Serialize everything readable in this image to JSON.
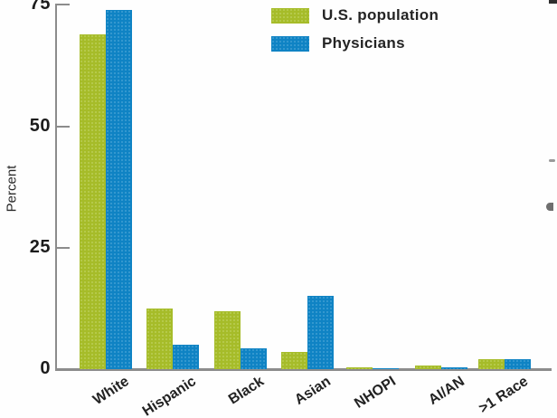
{
  "figure": {
    "y_axis_label": "Percent"
  },
  "chart_data": {
    "type": "bar",
    "title": "",
    "xlabel": "",
    "ylabel": "Percent",
    "categories": [
      "White",
      "Hispanic",
      "Black",
      "Asian",
      "NHOPI",
      "AI/AN",
      ">1 Race"
    ],
    "series": [
      {
        "name": "U.S. population",
        "color": "#a9c02a",
        "values": [
          69,
          12.5,
          12,
          3.5,
          0.3,
          0.8,
          2
        ]
      },
      {
        "name": "Physicians",
        "color": "#0f86c8",
        "values": [
          74,
          5,
          4.3,
          15,
          0.15,
          0.3,
          2
        ]
      }
    ],
    "yticks": [
      0,
      25,
      50,
      75
    ],
    "ylim": [
      0,
      75
    ],
    "grid": false,
    "legend_position": "top-inside"
  }
}
